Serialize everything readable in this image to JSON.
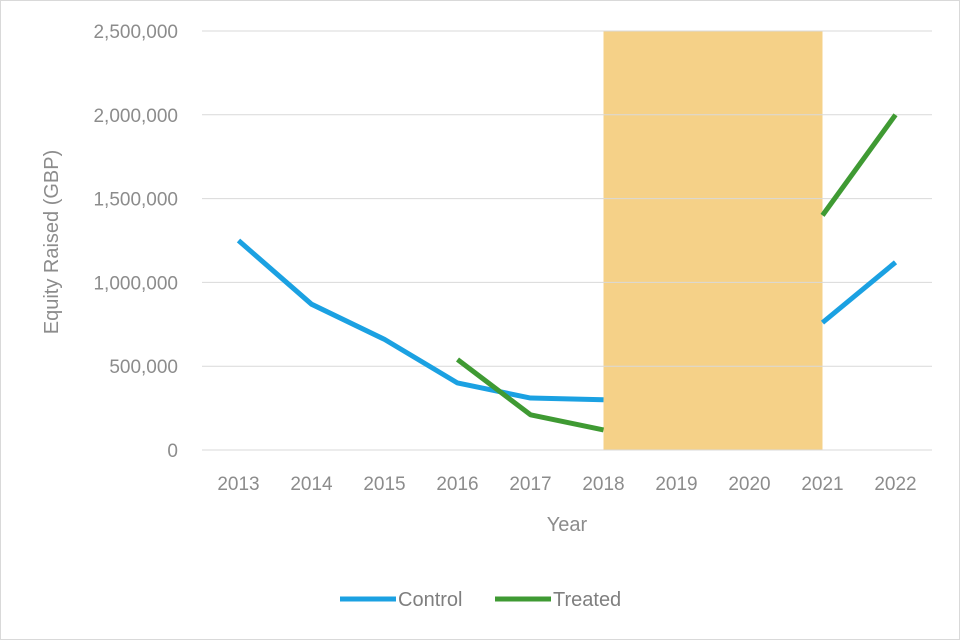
{
  "chart_data": {
    "type": "line",
    "xlabel": "Year",
    "ylabel": "Equity Raised (GBP)",
    "ylim": [
      0,
      2500000
    ],
    "yticks": [
      0,
      500000,
      1000000,
      1500000,
      2000000,
      2500000
    ],
    "ytick_labels": [
      "0",
      "500,000",
      "1,000,000",
      "1,500,000",
      "2,000,000",
      "2,500,000"
    ],
    "categories": [
      "2013",
      "2014",
      "2015",
      "2016",
      "2017",
      "2018",
      "2019",
      "2020",
      "2021",
      "2022"
    ],
    "shaded_region": {
      "from": "2018",
      "to": "2021",
      "color": "#f5d188"
    },
    "grid": "horizontal",
    "legend_position": "bottom",
    "series": [
      {
        "name": "Control",
        "color": "#1ba1e2",
        "values": [
          1250000,
          870000,
          660000,
          400000,
          310000,
          300000,
          null,
          null,
          760000,
          1120000
        ]
      },
      {
        "name": "Treated",
        "color": "#3f9a33",
        "values": [
          null,
          null,
          null,
          540000,
          210000,
          120000,
          null,
          null,
          1400000,
          2000000
        ]
      }
    ]
  }
}
